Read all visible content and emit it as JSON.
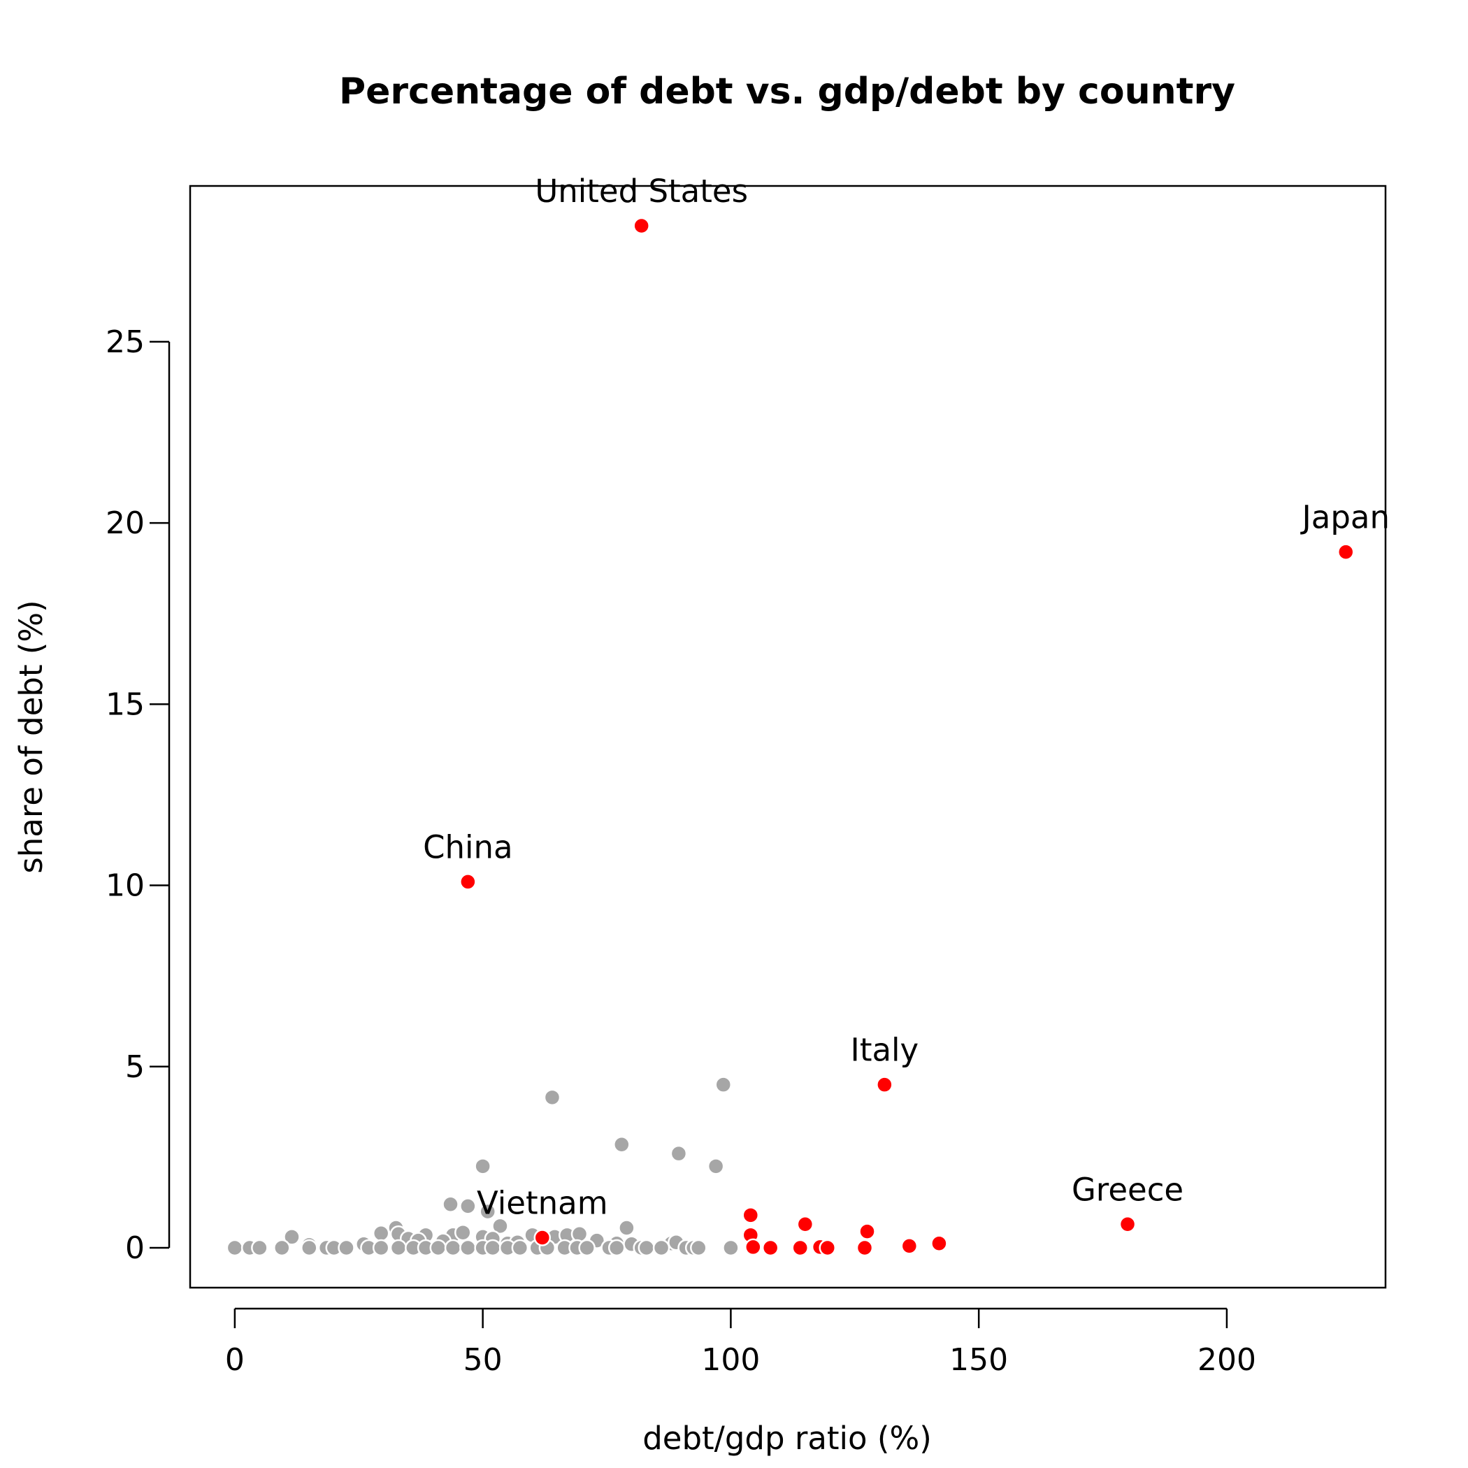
{
  "chart_data": {
    "type": "scatter",
    "title": "Percentage of debt vs. gdp/debt by country",
    "xlabel": "debt/gdp ratio (%)",
    "ylabel": "share of debt (%)",
    "xlim": [
      -9,
      232
    ],
    "ylim": [
      -1.1,
      29.3
    ],
    "xticks": [
      0,
      50,
      100,
      150,
      200
    ],
    "yticks": [
      0,
      5,
      10,
      15,
      20,
      25
    ],
    "grid": false,
    "legend": "none",
    "colors": {
      "highlight": "#ff0000",
      "other": "#a6a6a6",
      "point_outline": "#ffffff"
    },
    "labeled_points": [
      {
        "label": "United States",
        "x": 82,
        "y": 28.2
      },
      {
        "label": "Japan",
        "x": 224,
        "y": 19.2
      },
      {
        "label": "China",
        "x": 47,
        "y": 10.1
      },
      {
        "label": "Italy",
        "x": 131,
        "y": 4.5
      },
      {
        "label": "Greece",
        "x": 180,
        "y": 0.65
      },
      {
        "label": "Vietnam",
        "x": 62,
        "y": 0.28
      }
    ],
    "series": [
      {
        "color": "#ff0000",
        "points": [
          [
            82,
            28.2
          ],
          [
            224,
            19.2
          ],
          [
            47,
            10.1
          ],
          [
            131,
            4.5
          ],
          [
            180,
            0.65
          ],
          [
            62,
            0.28
          ],
          [
            104,
            0.9
          ],
          [
            104,
            0.35
          ],
          [
            104.5,
            0.02
          ],
          [
            108,
            0.0
          ],
          [
            114,
            0.0
          ],
          [
            115,
            0.65
          ],
          [
            118,
            0.02
          ],
          [
            119.5,
            0.0
          ],
          [
            127,
            0.0
          ],
          [
            127.5,
            0.45
          ],
          [
            136,
            0.05
          ],
          [
            142,
            0.12
          ]
        ]
      },
      {
        "color": "#a6a6a6",
        "points": [
          [
            98.5,
            4.5
          ],
          [
            64,
            4.15
          ],
          [
            78,
            2.85
          ],
          [
            89.5,
            2.6
          ],
          [
            97,
            2.25
          ],
          [
            50,
            2.25
          ],
          [
            43.5,
            1.2
          ],
          [
            47,
            1.15
          ],
          [
            51,
            1.0
          ],
          [
            53.5,
            0.6
          ],
          [
            79,
            0.55
          ],
          [
            32.5,
            0.55
          ],
          [
            29.5,
            0.4
          ],
          [
            33,
            0.38
          ],
          [
            38.5,
            0.35
          ],
          [
            44,
            0.35
          ],
          [
            46,
            0.42
          ],
          [
            50,
            0.3
          ],
          [
            52,
            0.25
          ],
          [
            60,
            0.35
          ],
          [
            64.5,
            0.3
          ],
          [
            67,
            0.35
          ],
          [
            69.5,
            0.38
          ],
          [
            73,
            0.2
          ],
          [
            11.5,
            0.3
          ],
          [
            26,
            0.1
          ],
          [
            15,
            0.08
          ],
          [
            35,
            0.25
          ],
          [
            37,
            0.2
          ],
          [
            42,
            0.18
          ],
          [
            55,
            0.12
          ],
          [
            57,
            0.15
          ],
          [
            77,
            0.12
          ],
          [
            80,
            0.1
          ],
          [
            88,
            0.12
          ],
          [
            89,
            0.15
          ],
          [
            0,
            0.0
          ],
          [
            3,
            0.0
          ],
          [
            5,
            0.0
          ],
          [
            9.5,
            0.0
          ],
          [
            15,
            0.0
          ],
          [
            18.5,
            0.0
          ],
          [
            20,
            0.0
          ],
          [
            22.5,
            0.0
          ],
          [
            27,
            0.0
          ],
          [
            29.5,
            0.0
          ],
          [
            33,
            0.0
          ],
          [
            36,
            0.0
          ],
          [
            38.5,
            0.0
          ],
          [
            41,
            0.0
          ],
          [
            44,
            0.0
          ],
          [
            47,
            0.0
          ],
          [
            50,
            0.0
          ],
          [
            52,
            0.0
          ],
          [
            55,
            0.0
          ],
          [
            57.5,
            0.0
          ],
          [
            61,
            0.0
          ],
          [
            63,
            0.0
          ],
          [
            66.5,
            0.0
          ],
          [
            69,
            0.0
          ],
          [
            71,
            0.0
          ],
          [
            75.5,
            0.0
          ],
          [
            77,
            0.0
          ],
          [
            82,
            0.0
          ],
          [
            83,
            0.0
          ],
          [
            86,
            0.0
          ],
          [
            91,
            0.0
          ],
          [
            92.5,
            0.0
          ],
          [
            93.5,
            0.0
          ],
          [
            100,
            0.0
          ]
        ]
      }
    ]
  }
}
